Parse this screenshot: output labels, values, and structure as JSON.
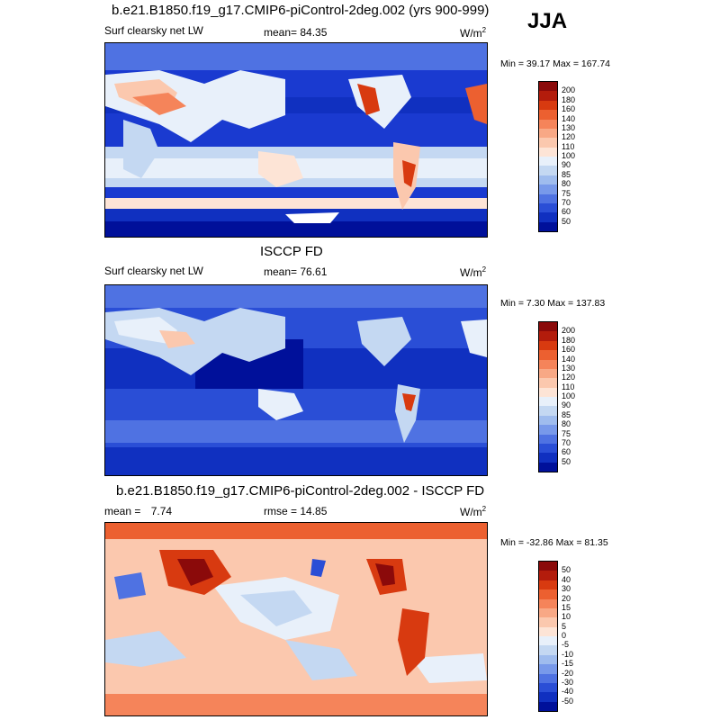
{
  "season": "JJA",
  "chart_data": [
    {
      "type": "heatmap",
      "title": "b.e21.B1850.f19_g17.CMIP6-piControl-2deg.002 (yrs 900-999)",
      "left_label": "Surf clearsky net LW",
      "mean_label": "mean=",
      "mean_value": "84.35",
      "units": "W/m",
      "units_sup": "2",
      "min_max": "Min =  39.17 Max = 167.74",
      "colorbar_levels": [
        "200",
        "180",
        "160",
        "140",
        "130",
        "120",
        "110",
        "100",
        "90",
        "85",
        "80",
        "75",
        "70",
        "60",
        "50"
      ],
      "colors": [
        "#8b0a0a",
        "#b31c0c",
        "#d83a10",
        "#ec6030",
        "#f5845a",
        "#f8a885",
        "#fbc8ae",
        "#fde4d6",
        "#e8f0fa",
        "#c4d8f2",
        "#9fbcee",
        "#7899ea",
        "#4f72e2",
        "#2a4ed6",
        "#1030c0",
        "#00109a"
      ]
    },
    {
      "type": "heatmap",
      "title": "ISCCP FD",
      "left_label": "Surf clearsky net LW",
      "mean_label": "mean=",
      "mean_value": "76.61",
      "units": "W/m",
      "units_sup": "2",
      "min_max": "Min =   7.30 Max = 137.83",
      "colorbar_levels": [
        "200",
        "180",
        "160",
        "140",
        "130",
        "120",
        "110",
        "100",
        "90",
        "85",
        "80",
        "75",
        "70",
        "60",
        "50"
      ],
      "colors": [
        "#8b0a0a",
        "#b31c0c",
        "#d83a10",
        "#ec6030",
        "#f5845a",
        "#f8a885",
        "#fbc8ae",
        "#fde4d6",
        "#e8f0fa",
        "#c4d8f2",
        "#9fbcee",
        "#7899ea",
        "#4f72e2",
        "#2a4ed6",
        "#1030c0",
        "#00109a"
      ]
    },
    {
      "type": "heatmap",
      "title": "b.e21.B1850.f19_g17.CMIP6-piControl-2deg.002 - ISCCP FD",
      "left_label": "mean =",
      "left_value": "7.74",
      "mean_label": "rmse =",
      "mean_value": "14.85",
      "units": "W/m",
      "units_sup": "2",
      "min_max": "Min = -32.86 Max =  81.35",
      "colorbar_levels": [
        "50",
        "40",
        "30",
        "20",
        "15",
        "10",
        "5",
        "0",
        "-5",
        "-10",
        "-15",
        "-20",
        "-30",
        "-40",
        "-50"
      ],
      "colors": [
        "#8b0a0a",
        "#b31c0c",
        "#d83a10",
        "#ec6030",
        "#f5845a",
        "#f8a885",
        "#fbc8ae",
        "#fde4d6",
        "#e8f0fa",
        "#c4d8f2",
        "#9fbcee",
        "#7899ea",
        "#4f72e2",
        "#2a4ed6",
        "#1030c0",
        "#00109a"
      ]
    }
  ]
}
